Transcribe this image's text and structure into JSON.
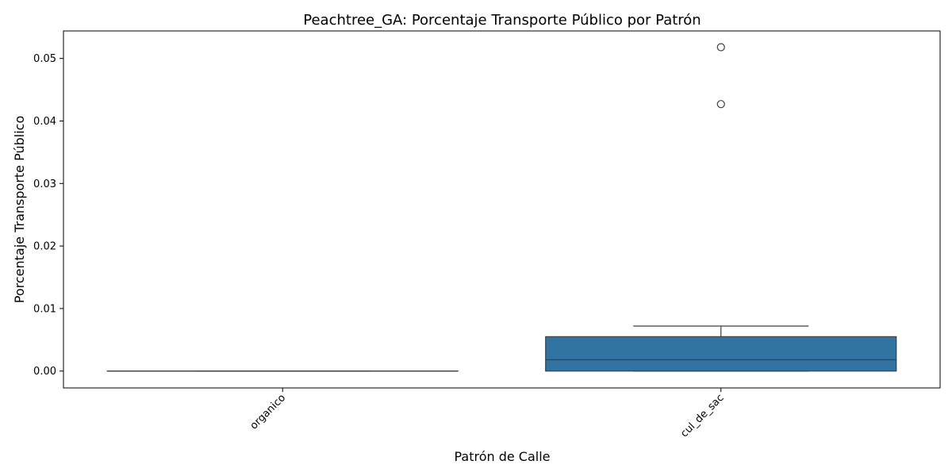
{
  "chart_data": {
    "type": "box",
    "title": "Peachtree_GA: Porcentaje Transporte Público por Patrón",
    "xlabel": "Patrón de Calle",
    "ylabel": "Porcentaje Transporte Público",
    "categories": [
      "organico",
      "cul_de_sac"
    ],
    "ylim": [
      -0.0027,
      0.0544
    ],
    "yticks": [
      0.0,
      0.01,
      0.02,
      0.03,
      0.04,
      0.05
    ],
    "ytick_labels": [
      "0.00",
      "0.01",
      "0.02",
      "0.03",
      "0.04",
      "0.05"
    ],
    "grid": false,
    "box_color": "#3274a1",
    "boxes": [
      {
        "category": "organico",
        "whisker_low": 0.0,
        "q1": 0.0,
        "median": 0.0,
        "q3": 0.0,
        "whisker_high": 0.0,
        "outliers": []
      },
      {
        "category": "cul_de_sac",
        "whisker_low": 0.0,
        "q1": 0.0,
        "median": 0.0018,
        "q3": 0.0055,
        "whisker_high": 0.0072,
        "outliers": [
          0.0427,
          0.0518
        ]
      }
    ]
  }
}
